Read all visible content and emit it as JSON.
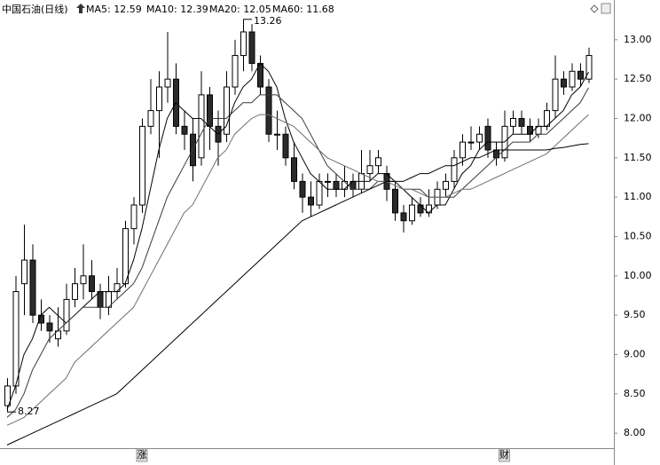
{
  "chart_data": {
    "type": "candlestick",
    "title": "中国石油(日线)",
    "open": [
      8.35,
      8.6,
      9.9,
      10.2,
      9.5,
      9.4,
      9.2,
      9.3,
      9.7,
      9.9,
      10.0,
      9.8,
      9.6,
      9.8,
      9.9,
      10.6,
      10.9,
      11.9,
      12.1,
      12.4,
      12.5,
      11.9,
      11.8,
      11.5,
      12.3,
      11.9,
      11.8,
      12.4,
      12.8,
      13.1,
      12.7,
      12.4,
      11.8,
      11.8,
      11.5,
      11.2,
      11.0,
      10.9,
      11.2,
      11.2,
      11.1,
      11.2,
      11.1,
      11.3,
      11.4,
      11.3,
      11.1,
      10.8,
      10.7,
      10.9,
      10.8,
      10.9,
      11.1,
      11.2,
      11.5,
      11.7,
      11.7,
      11.9,
      11.6,
      11.5,
      11.9,
      12.0,
      11.9,
      11.8,
      11.9,
      12.1,
      12.5,
      12.4,
      12.6,
      12.5
    ],
    "high": [
      8.7,
      10.0,
      10.65,
      10.4,
      9.7,
      9.5,
      9.6,
      9.9,
      10.1,
      10.4,
      10.2,
      9.9,
      10.0,
      10.1,
      10.7,
      11.0,
      12.0,
      12.5,
      12.6,
      13.1,
      12.7,
      12.1,
      12.0,
      12.6,
      12.4,
      12.1,
      12.6,
      13.0,
      13.26,
      13.2,
      12.8,
      12.5,
      12.1,
      11.9,
      11.7,
      11.3,
      11.2,
      11.3,
      11.3,
      11.3,
      11.4,
      11.3,
      11.6,
      11.6,
      11.6,
      11.4,
      11.2,
      10.9,
      11.0,
      11.0,
      11.1,
      11.2,
      11.3,
      11.6,
      11.8,
      11.9,
      11.9,
      12.0,
      11.7,
      12.1,
      12.1,
      12.1,
      12.0,
      12.0,
      12.2,
      12.8,
      12.6,
      12.7,
      12.7,
      12.9
    ],
    "low": [
      8.27,
      8.5,
      9.5,
      9.4,
      9.3,
      9.15,
      9.1,
      9.25,
      9.6,
      9.7,
      9.7,
      9.45,
      9.5,
      9.7,
      9.85,
      10.4,
      10.8,
      11.8,
      11.5,
      12.2,
      11.8,
      11.6,
      11.2,
      11.4,
      11.6,
      11.4,
      11.7,
      12.3,
      12.6,
      12.6,
      12.3,
      11.7,
      11.6,
      11.4,
      11.1,
      10.8,
      10.75,
      10.85,
      11.0,
      11.0,
      11.0,
      11.0,
      11.05,
      11.2,
      11.3,
      10.95,
      10.7,
      10.55,
      10.65,
      10.75,
      10.75,
      10.85,
      11.0,
      11.1,
      11.4,
      11.6,
      11.6,
      11.5,
      11.4,
      11.45,
      11.8,
      11.8,
      11.7,
      11.75,
      11.85,
      12.0,
      12.3,
      12.35,
      12.4,
      12.45
    ],
    "close": [
      8.6,
      9.8,
      10.2,
      9.5,
      9.4,
      9.3,
      9.3,
      9.7,
      9.9,
      10.0,
      9.8,
      9.6,
      9.8,
      9.9,
      10.6,
      10.9,
      11.9,
      12.1,
      12.4,
      12.5,
      11.9,
      11.8,
      11.4,
      12.3,
      11.9,
      11.7,
      12.4,
      12.8,
      13.1,
      12.7,
      12.4,
      11.8,
      11.8,
      11.5,
      11.2,
      11.0,
      10.9,
      11.2,
      11.2,
      11.1,
      11.2,
      11.1,
      11.3,
      11.4,
      11.5,
      11.1,
      10.8,
      10.7,
      10.9,
      10.8,
      10.9,
      11.1,
      11.2,
      11.5,
      11.7,
      11.7,
      11.8,
      11.6,
      11.5,
      11.9,
      12.0,
      11.9,
      11.8,
      11.9,
      12.1,
      12.5,
      12.4,
      12.6,
      12.5,
      12.8
    ],
    "up_color": "#ffffff",
    "down_color": "#2b2b2b",
    "edge_color": "#000000",
    "series": [
      {
        "name": "MA5: 12.59",
        "color": "#000000",
        "values": [
          8.3,
          8.6,
          9.0,
          9.2,
          9.5,
          9.6,
          9.5,
          9.4,
          9.5,
          9.6,
          9.7,
          9.8,
          9.8,
          9.8,
          9.9,
          10.2,
          10.6,
          11.1,
          11.6,
          12.0,
          12.2,
          12.1,
          12.0,
          12.0,
          11.9,
          11.8,
          11.9,
          12.2,
          12.4,
          12.5,
          12.7,
          12.6,
          12.4,
          12.0,
          11.7,
          11.5,
          11.3,
          11.2,
          11.1,
          11.1,
          11.1,
          11.2,
          11.2,
          11.2,
          11.3,
          11.3,
          11.2,
          11.1,
          11.0,
          10.9,
          10.8,
          10.9,
          10.9,
          11.1,
          11.3,
          11.4,
          11.6,
          11.7,
          11.7,
          11.7,
          11.8,
          11.8,
          11.8,
          11.9,
          11.9,
          12.0,
          12.1,
          12.3,
          12.4,
          12.59
        ]
      },
      {
        "name": "MA10: 12.39",
        "color": "#3a3a3a",
        "values": [
          8.2,
          8.3,
          8.5,
          8.8,
          9.0,
          9.2,
          9.3,
          9.4,
          9.5,
          9.6,
          9.6,
          9.6,
          9.6,
          9.7,
          9.8,
          9.9,
          10.1,
          10.4,
          10.7,
          11.0,
          11.2,
          11.4,
          11.6,
          11.8,
          12.0,
          12.0,
          12.0,
          12.1,
          12.2,
          12.2,
          12.3,
          12.3,
          12.3,
          12.2,
          12.1,
          12.0,
          11.8,
          11.6,
          11.4,
          11.3,
          11.2,
          11.1,
          11.1,
          11.1,
          11.2,
          11.2,
          11.2,
          11.1,
          11.1,
          11.1,
          11.0,
          11.0,
          11.0,
          11.0,
          11.1,
          11.2,
          11.3,
          11.4,
          11.5,
          11.6,
          11.7,
          11.7,
          11.7,
          11.8,
          11.8,
          11.9,
          12.0,
          12.1,
          12.2,
          12.39
        ]
      },
      {
        "name": "MA20: 12.05",
        "color": "#6e6e6e",
        "values": [
          8.1,
          8.15,
          8.2,
          8.3,
          8.4,
          8.5,
          8.6,
          8.7,
          8.9,
          9.0,
          9.1,
          9.2,
          9.3,
          9.4,
          9.5,
          9.6,
          9.8,
          10.0,
          10.2,
          10.4,
          10.6,
          10.8,
          10.9,
          11.1,
          11.3,
          11.5,
          11.6,
          11.8,
          11.9,
          12.0,
          12.05,
          12.05,
          12.0,
          11.95,
          11.9,
          11.8,
          11.7,
          11.6,
          11.5,
          11.45,
          11.4,
          11.35,
          11.3,
          11.25,
          11.2,
          11.2,
          11.15,
          11.1,
          11.1,
          11.05,
          11.0,
          11.0,
          11.0,
          11.05,
          11.1,
          11.1,
          11.15,
          11.2,
          11.25,
          11.3,
          11.35,
          11.4,
          11.45,
          11.5,
          11.55,
          11.65,
          11.75,
          11.85,
          11.95,
          12.05
        ]
      },
      {
        "name": "MA60: 11.68",
        "color": "#000000",
        "values": [
          7.85,
          7.9,
          7.95,
          8.0,
          8.05,
          8.1,
          8.15,
          8.2,
          8.25,
          8.3,
          8.35,
          8.4,
          8.45,
          8.5,
          8.6,
          8.7,
          8.8,
          8.9,
          9.0,
          9.1,
          9.2,
          9.3,
          9.4,
          9.5,
          9.6,
          9.7,
          9.8,
          9.9,
          10.0,
          10.1,
          10.2,
          10.3,
          10.4,
          10.5,
          10.6,
          10.7,
          10.75,
          10.8,
          10.85,
          10.9,
          10.95,
          11.0,
          11.05,
          11.1,
          11.15,
          11.2,
          11.2,
          11.2,
          11.25,
          11.3,
          11.3,
          11.35,
          11.4,
          11.4,
          11.45,
          11.5,
          11.5,
          11.55,
          11.6,
          11.6,
          11.6,
          11.6,
          11.6,
          11.6,
          11.6,
          11.62,
          11.63,
          11.65,
          11.67,
          11.68
        ]
      }
    ],
    "annotations": [
      {
        "label": "13.26",
        "value": 13.26
      },
      {
        "label": "8.27",
        "value": 8.27
      }
    ],
    "markers": [
      {
        "label": "涨",
        "index": 16
      },
      {
        "label": "财",
        "index": 59
      }
    ],
    "ylim": [
      7.81,
      13.28
    ],
    "yticks": [
      {
        "value": 8,
        "label": "8.00"
      },
      {
        "value": 8.5,
        "label": "8.50"
      },
      {
        "value": 9,
        "label": "9.00"
      },
      {
        "value": 9.5,
        "label": "9.50"
      },
      {
        "value": 10,
        "label": "10.00"
      },
      {
        "value": 10.5,
        "label": "10.50"
      },
      {
        "value": 11,
        "label": "11.00"
      },
      {
        "value": 11.5,
        "label": "11.50"
      },
      {
        "value": 12,
        "label": "12.00"
      },
      {
        "value": 12.5,
        "label": "12.50"
      },
      {
        "value": 13,
        "label": "13.00"
      }
    ],
    "grid": false
  }
}
